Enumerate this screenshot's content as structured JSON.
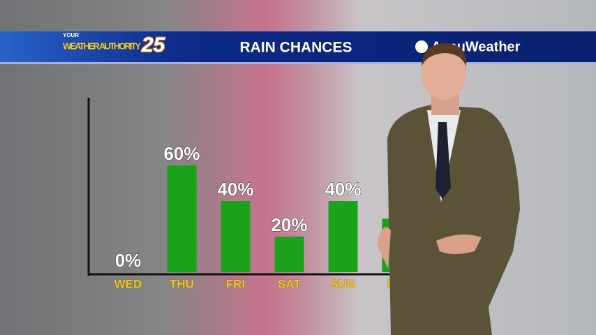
{
  "header": {
    "brand_small": "YOUR",
    "brand": "WEATHER AUTHORITY",
    "channel": "25",
    "sponsor": "AccuWeather"
  },
  "chart_data": {
    "type": "bar",
    "title": "RAIN CHANCES",
    "categories": [
      "WED",
      "THU",
      "FRI",
      "SAT",
      "SUN",
      "MO"
    ],
    "values": [
      0,
      60,
      40,
      20,
      40,
      30
    ],
    "value_labels": [
      "0%",
      "60%",
      "40%",
      "20%",
      "40%",
      null
    ],
    "color": "#1aa31a",
    "ylim": [
      0,
      100
    ]
  }
}
